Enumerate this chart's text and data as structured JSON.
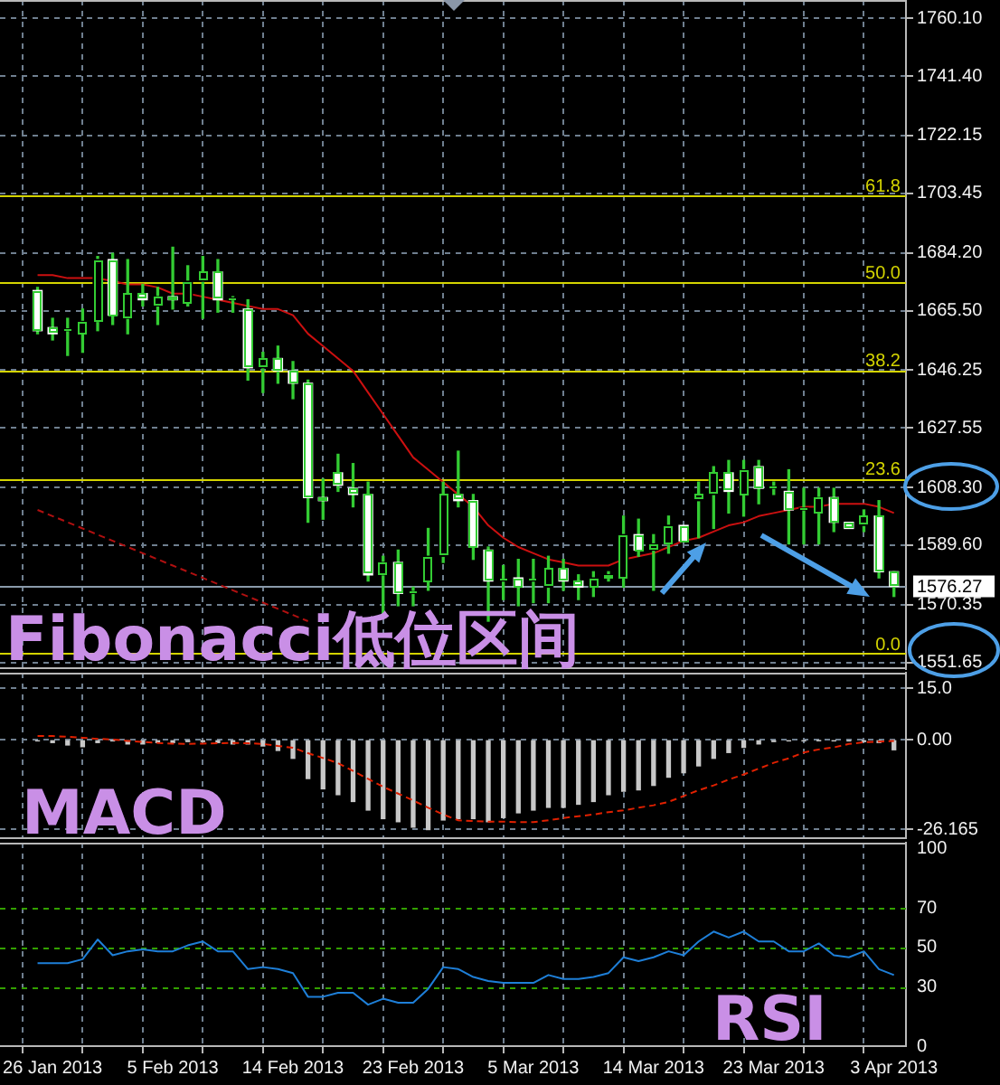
{
  "chart_data": [
    {
      "type": "candlestick",
      "categories": [
        null,
        null,
        null,
        null,
        null,
        null,
        null,
        null,
        null,
        null,
        null,
        null,
        null,
        null,
        null,
        null,
        null,
        null,
        null,
        null,
        null,
        null,
        null,
        null,
        null,
        null,
        null,
        null,
        null,
        null,
        null,
        null,
        null,
        null,
        null,
        null,
        null,
        null,
        null,
        null,
        null,
        null,
        null,
        null,
        null,
        null,
        null,
        null,
        null,
        null,
        null,
        null,
        null,
        null,
        null,
        null,
        null,
        null
      ],
      "ohlc": [
        [
          1672,
          1673,
          1658,
          1659
        ],
        [
          1660,
          1663,
          1656,
          1658
        ],
        [
          1659,
          1663,
          1651,
          1659
        ],
        [
          1658,
          1666,
          1652,
          1662
        ],
        [
          1662,
          1683,
          1659,
          1682
        ],
        [
          1682,
          1684,
          1661,
          1664
        ],
        [
          1663,
          1682,
          1658,
          1671
        ],
        [
          1671,
          1674,
          1667,
          1669
        ],
        [
          1667,
          1673,
          1661,
          1670
        ],
        [
          1670,
          1686,
          1666,
          1669
        ],
        [
          1668,
          1680,
          1667,
          1675
        ],
        [
          1675,
          1683,
          1663,
          1678
        ],
        [
          1678,
          1682,
          1665,
          1669
        ],
        [
          1669,
          1670,
          1665,
          1669
        ],
        [
          1666,
          1669,
          1643,
          1647
        ],
        [
          1647,
          1652,
          1639,
          1650
        ],
        [
          1650,
          1654,
          1642,
          1646
        ],
        [
          1646,
          1649,
          1637,
          1642
        ],
        [
          1642,
          1643,
          1597,
          1605
        ],
        [
          1605,
          1611,
          1598,
          1604
        ],
        [
          1613,
          1619,
          1607,
          1609
        ],
        [
          1608,
          1616,
          1602,
          1606
        ],
        [
          1606,
          1610,
          1578,
          1580
        ],
        [
          1580,
          1586,
          1567,
          1584
        ],
        [
          1584,
          1588,
          1570,
          1574
        ],
        [
          1574,
          1576,
          1570,
          1574
        ],
        [
          1578,
          1595,
          1575,
          1586
        ],
        [
          1586,
          1610,
          1584,
          1606
        ],
        [
          1606,
          1620,
          1602,
          1604
        ],
        [
          1604,
          1606,
          1585,
          1589
        ],
        [
          1588,
          1589,
          1565,
          1578
        ],
        [
          1578,
          1583,
          1572,
          1578
        ],
        [
          1579,
          1585,
          1570,
          1576
        ],
        [
          1578,
          1585,
          1571,
          1578
        ],
        [
          1576,
          1586,
          1571,
          1582
        ],
        [
          1582,
          1585,
          1575,
          1578
        ],
        [
          1578,
          1580,
          1572,
          1576
        ],
        [
          1576,
          1581,
          1573,
          1579
        ],
        [
          1579,
          1581,
          1578,
          1580
        ],
        [
          1579,
          1599,
          1576,
          1593
        ],
        [
          1593,
          1598,
          1586,
          1588
        ],
        [
          1588,
          1593,
          1575,
          1590
        ],
        [
          1590,
          1599,
          1587,
          1596
        ],
        [
          1596,
          1596,
          1591,
          1591
        ],
        [
          1604,
          1610,
          1592,
          1606
        ],
        [
          1606,
          1615,
          1595,
          1613
        ],
        [
          1613,
          1617,
          1600,
          1607
        ],
        [
          1606,
          1617,
          1599,
          1614
        ],
        [
          1615,
          1617,
          1603,
          1608
        ],
        [
          1608,
          1610,
          1606,
          1608
        ],
        [
          1607,
          1614,
          1590,
          1601
        ],
        [
          1601,
          1608,
          1590,
          1601
        ],
        [
          1600,
          1608,
          1590,
          1605
        ],
        [
          1605,
          1608,
          1594,
          1597
        ],
        [
          1597,
          1597,
          1595,
          1595
        ],
        [
          1596,
          1601,
          1594,
          1599
        ],
        [
          1599,
          1604,
          1579,
          1581
        ],
        [
          1581,
          1581,
          1573,
          1576.27
        ]
      ],
      "color": "#33cc33",
      "colors": [
        "#ffffff",
        "#ffffff",
        "#000000",
        "#000000",
        "#000000",
        "#ffffff",
        "#000000",
        "#ffffff",
        "#000000",
        "#ffffff",
        "#000000",
        "#000000",
        "#ffffff",
        "#000000",
        "#ffffff",
        "#000000",
        "#ffffff",
        "#ffffff",
        "#ffffff",
        "#ffffff",
        "#ffffff",
        "#ffffff",
        "#ffffff",
        "#000000",
        "#ffffff",
        "#000000",
        "#000000",
        "#000000",
        "#ffffff",
        "#ffffff",
        "#ffffff",
        "#000000",
        "#ffffff",
        "#000000",
        "#000000",
        "#ffffff",
        "#ffffff",
        "#000000",
        "#000000",
        "#000000",
        "#ffffff",
        "#000000",
        "#000000",
        "#ffffff",
        "#000000",
        "#000000",
        "#ffffff",
        "#000000",
        "#ffffff",
        "#000000",
        "#ffffff",
        "#000000",
        "#000000",
        "#ffffff",
        "#ffffff",
        "#000000",
        "#ffffff",
        "#ffffff"
      ],
      "series": [
        {
          "type": "line",
          "color": "#cc1010",
          "values": [
            1677,
            1677,
            1676,
            1676,
            1676,
            1675,
            1674,
            1674,
            1673,
            1671,
            1671,
            1670,
            1669,
            1668,
            1667,
            1666,
            1666,
            1664,
            1658,
            1654,
            1650,
            1646,
            1639,
            1632,
            1625,
            1618,
            1614,
            1610,
            1606,
            1602,
            1596,
            1592,
            1589,
            1587,
            1585,
            1584,
            1583,
            1583,
            1583,
            1585,
            1586,
            1587,
            1589,
            1591,
            1592,
            1594,
            1596,
            1597,
            1599,
            1600,
            1601,
            1602,
            1602,
            1603,
            1603,
            1603,
            1602,
            1600
          ]
        },
        {
          "type": "line",
          "color": "#b01010",
          "line_style": "dashed",
          "values": [
            1601,
            1599,
            1597,
            1595,
            1593,
            1591,
            1589,
            1587,
            1585,
            1583,
            1581,
            1579,
            1577,
            1575,
            1573,
            1571,
            1569,
            1567,
            1565,
            null,
            null,
            null,
            null,
            null,
            null,
            null,
            null,
            null,
            null,
            null,
            null,
            null,
            null,
            null,
            null,
            null,
            null,
            null,
            null,
            null,
            null,
            null,
            null,
            null,
            null,
            null,
            null,
            null,
            null,
            null,
            null,
            null,
            null,
            null,
            null,
            null,
            null,
            null
          ]
        }
      ],
      "ylim": [
        1549.5,
        1766
      ],
      "yticks": [
        {
          "value": 1760.1,
          "label": "1760.10"
        },
        {
          "value": 1741.4,
          "label": "1741.40"
        },
        1722.15,
        1703.45,
        {
          "value": 1684.2,
          "label": "1684.20"
        },
        {
          "value": 1665.5,
          "label": "1665.50"
        },
        1646.25,
        1627.55,
        {
          "value": 1608.3,
          "label": "1608.30"
        },
        {
          "value": 1589.6,
          "label": "1589.60"
        },
        1570.35,
        1551.65
      ],
      "grid": true,
      "tick_labels": "y",
      "ref_lines": [
        {
          "axis": "y",
          "value": 1702.9,
          "color": "#d4d400"
        },
        {
          "axis": "y",
          "value": 1674.6,
          "color": "#d4d400"
        },
        {
          "axis": "y",
          "value": 1646.2,
          "color": "#d4d400"
        },
        {
          "axis": "y",
          "value": 1611.2,
          "color": "#d4d400"
        },
        {
          "axis": "y",
          "value": 1554.5,
          "color": "#d4d400"
        },
        {
          "axis": "y",
          "value": 1576.27,
          "label": "1576.27",
          "color": "#8a9aaa"
        }
      ],
      "annotations": [
        "Fibonacci低位区间",
        {
          "text": "61.8",
          "y": 1702.9
        },
        {
          "text": "50.0",
          "y": 1674.6
        },
        {
          "text": "38.2",
          "y": 1646.2
        },
        {
          "text": "23.6",
          "y": 1611.2
        },
        {
          "text": "0.0",
          "y": 1554.5
        }
      ]
    },
    {
      "type": "bar",
      "categories": [
        null,
        null,
        null,
        null,
        null,
        null,
        null,
        null,
        null,
        null,
        null,
        null,
        null,
        null,
        null,
        null,
        null,
        null,
        null,
        null,
        null,
        null,
        null,
        null,
        null,
        null,
        null,
        null,
        null,
        null,
        null,
        null,
        null,
        null,
        null,
        null,
        null,
        null,
        null,
        null,
        null,
        null,
        null,
        null,
        null,
        null,
        null,
        null,
        null,
        null,
        null,
        null,
        null,
        null,
        null,
        null,
        null,
        null
      ],
      "series": [
        {
          "color": "#c8c8c8",
          "values": [
            -0.3,
            -0.8,
            -1.5,
            -2.0,
            -0.8,
            -0.3,
            -1.2,
            -1.2,
            -0.8,
            -0.8,
            -0.5,
            -0.5,
            -0.8,
            -1.2,
            -1.2,
            -1.8,
            -3.1,
            -5.4,
            -11.3,
            -14.3,
            -16.0,
            -18.0,
            -20.5,
            -23.0,
            -23.9,
            -25.5,
            -26.2,
            -23.4,
            -23.0,
            -23.0,
            -23.9,
            -22.7,
            -21.3,
            -20.5,
            -19.7,
            -19.7,
            -18.8,
            -18.0,
            -16.0,
            -15.0,
            -14.6,
            -13.3,
            -10.9,
            -9.6,
            -7.6,
            -5.4,
            -3.7,
            -2.2,
            -1.2,
            -0.5,
            -0.3,
            -0.3,
            -0.2,
            -0.3,
            -0.3,
            -0.5,
            -0.8,
            -2.9
          ]
        },
        {
          "type": "line",
          "color": "#e02000",
          "line_style": "dashed",
          "values": [
            1.1,
            1.1,
            0.9,
            0.6,
            0.3,
            0.1,
            -0.3,
            -0.6,
            -0.9,
            -1.1,
            -1.2,
            -1.1,
            -1.0,
            -0.9,
            -1.0,
            -1.2,
            -1.8,
            -2.3,
            -3.9,
            -5.3,
            -6.8,
            -9.1,
            -11.4,
            -13.7,
            -15.7,
            -17.7,
            -19.8,
            -21.8,
            -23.5,
            -23.7,
            -23.9,
            -23.9,
            -24.0,
            -24.0,
            -23.5,
            -22.8,
            -22.3,
            -21.8,
            -21.1,
            -20.6,
            -19.8,
            -19.1,
            -18.1,
            -16.4,
            -14.7,
            -13.3,
            -11.6,
            -10.1,
            -8.4,
            -6.7,
            -5.4,
            -3.7,
            -2.8,
            -2.2,
            -1.2,
            -0.7,
            -0.5,
            -0.3
          ]
        }
      ],
      "ylim": [
        -28.7,
        19.6
      ],
      "yticks": [
        {
          "value": 15,
          "label": "15.0"
        },
        {
          "value": 0,
          "label": "0.00"
        },
        -26.165
      ],
      "grid": true,
      "tick_labels": "y",
      "annotations": [
        "MACD"
      ]
    },
    {
      "type": "line",
      "categories": [
        null,
        "26 Jan 2013",
        null,
        null,
        null,
        null,
        null,
        null,
        null,
        "5 Feb 2013",
        null,
        null,
        null,
        null,
        null,
        null,
        null,
        "14 Feb 2013",
        null,
        null,
        null,
        null,
        null,
        null,
        null,
        "23 Feb 2013",
        null,
        null,
        null,
        null,
        null,
        null,
        null,
        "5 Mar 2013",
        null,
        null,
        null,
        null,
        null,
        null,
        null,
        "14 Mar 2013",
        null,
        null,
        null,
        null,
        null,
        null,
        null,
        "23 Mar 2013",
        null,
        null,
        null,
        null,
        null,
        null,
        null,
        "3 Apr 2013"
      ],
      "series": [
        {
          "color": "#1e7fd8",
          "values": [
            42,
            42,
            42,
            44,
            54,
            46,
            48,
            49,
            48,
            48,
            51,
            53,
            48,
            48,
            39,
            40,
            39,
            37,
            25,
            25,
            27,
            27,
            21,
            24,
            22,
            22,
            29,
            40,
            39,
            35,
            33,
            32,
            32,
            32,
            36,
            34,
            34,
            35,
            37,
            45,
            43,
            45,
            48,
            46,
            53,
            58,
            55,
            58,
            53,
            53,
            48,
            48,
            52,
            46,
            45,
            48,
            39,
            36
          ]
        }
      ],
      "ylim": [
        0,
        103
      ],
      "yticks": [
        100,
        70,
        50,
        30,
        0
      ],
      "grid": "x",
      "ref_lines": [
        {
          "axis": "y",
          "value": 70,
          "color": "#33a000",
          "line_style": "dashed"
        },
        {
          "axis": "y",
          "value": 50,
          "color": "#33a000",
          "line_style": "dashed"
        },
        {
          "axis": "y",
          "value": 30,
          "color": "#33a000",
          "line_style": "dashed"
        }
      ],
      "annotations": [
        "RSI"
      ]
    }
  ]
}
